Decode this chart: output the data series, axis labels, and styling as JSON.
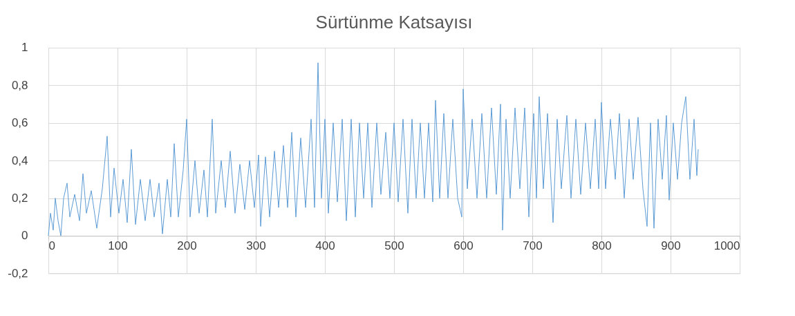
{
  "chart_data": {
    "type": "line",
    "title": "Sürtünme Katsayısı",
    "x": [
      0,
      3,
      7,
      10,
      14,
      18,
      22,
      27,
      31,
      38,
      45,
      50,
      55,
      62,
      70,
      78,
      85,
      90,
      95,
      102,
      108,
      114,
      120,
      126,
      133,
      140,
      147,
      153,
      160,
      165,
      172,
      177,
      182,
      188,
      195,
      200,
      205,
      212,
      218,
      225,
      230,
      237,
      242,
      250,
      256,
      263,
      270,
      277,
      284,
      291,
      298,
      304,
      307,
      314,
      320,
      327,
      333,
      340,
      346,
      352,
      358,
      365,
      372,
      380,
      385,
      390,
      395,
      400,
      405,
      412,
      418,
      425,
      431,
      438,
      444,
      450,
      456,
      462,
      468,
      475,
      481,
      488,
      494,
      500,
      506,
      513,
      520,
      526,
      532,
      538,
      544,
      550,
      556,
      560,
      566,
      572,
      578,
      585,
      592,
      598,
      600,
      606,
      613,
      620,
      627,
      634,
      641,
      648,
      654,
      657,
      662,
      668,
      675,
      682,
      689,
      695,
      702,
      706,
      710,
      716,
      722,
      730,
      736,
      742,
      750,
      756,
      763,
      770,
      777,
      784,
      791,
      796,
      800,
      806,
      813,
      820,
      826,
      833,
      840,
      846,
      853,
      860,
      866,
      871,
      876,
      882,
      888,
      894,
      898,
      904,
      910,
      916,
      922,
      928,
      934,
      938,
      940
    ],
    "series": [
      {
        "color": "#5b9bd5",
        "values": [
          0.0,
          0.12,
          0.03,
          0.2,
          0.08,
          0.0,
          0.2,
          0.28,
          0.1,
          0.22,
          0.08,
          0.33,
          0.12,
          0.24,
          0.04,
          0.25,
          0.53,
          0.1,
          0.36,
          0.12,
          0.3,
          0.07,
          0.46,
          0.06,
          0.3,
          0.08,
          0.3,
          0.1,
          0.28,
          0.01,
          0.3,
          0.1,
          0.49,
          0.1,
          0.35,
          0.62,
          0.1,
          0.4,
          0.12,
          0.35,
          0.1,
          0.62,
          0.12,
          0.4,
          0.15,
          0.45,
          0.12,
          0.38,
          0.14,
          0.4,
          0.15,
          0.43,
          0.05,
          0.42,
          0.1,
          0.45,
          0.15,
          0.48,
          0.15,
          0.55,
          0.1,
          0.52,
          0.15,
          0.62,
          0.15,
          0.92,
          0.2,
          0.62,
          0.12,
          0.6,
          0.18,
          0.62,
          0.08,
          0.62,
          0.1,
          0.6,
          0.2,
          0.6,
          0.15,
          0.6,
          0.22,
          0.55,
          0.2,
          0.6,
          0.18,
          0.62,
          0.12,
          0.62,
          0.2,
          0.6,
          0.2,
          0.6,
          0.18,
          0.72,
          0.2,
          0.65,
          0.2,
          0.62,
          0.2,
          0.1,
          0.78,
          0.25,
          0.62,
          0.2,
          0.65,
          0.2,
          0.68,
          0.22,
          0.7,
          0.03,
          0.62,
          0.2,
          0.68,
          0.25,
          0.68,
          0.1,
          0.65,
          0.2,
          0.74,
          0.25,
          0.65,
          0.07,
          0.62,
          0.25,
          0.64,
          0.2,
          0.62,
          0.22,
          0.6,
          0.25,
          0.62,
          0.25,
          0.71,
          0.25,
          0.62,
          0.3,
          0.65,
          0.2,
          0.62,
          0.3,
          0.63,
          0.25,
          0.05,
          0.6,
          0.04,
          0.62,
          0.3,
          0.64,
          0.19,
          0.6,
          0.3,
          0.6,
          0.74,
          0.3,
          0.62,
          0.32,
          0.46
        ]
      }
    ],
    "xlim": [
      0,
      1000
    ],
    "xticks": [
      0,
      100,
      200,
      300,
      400,
      500,
      600,
      700,
      800,
      900,
      1000
    ],
    "ylim": [
      -0.2,
      1
    ],
    "yticks": [
      {
        "value": -0.2,
        "label": "-0,2"
      },
      0,
      {
        "value": 0.2,
        "label": "0,2"
      },
      {
        "value": 0.4,
        "label": "0,4"
      },
      {
        "value": 0.6,
        "label": "0,6"
      },
      {
        "value": 0.8,
        "label": "0,8"
      },
      1
    ],
    "grid": true
  }
}
